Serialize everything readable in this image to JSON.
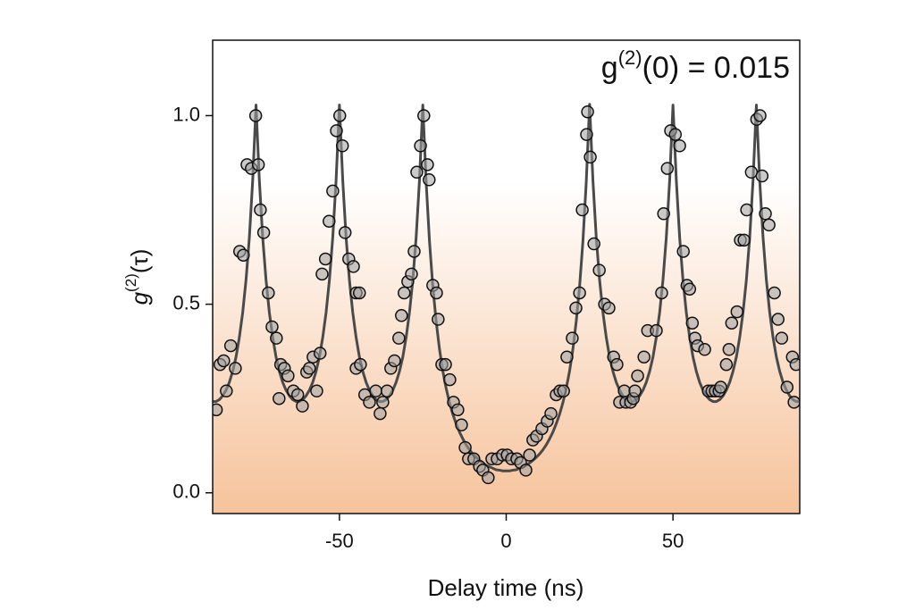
{
  "chart_data": {
    "type": "scatter",
    "annotation": {
      "base": "g",
      "sup": "(2)",
      "rest": "(0) = 0.015"
    },
    "x_label": "Delay time (ns)",
    "y_label": {
      "base": "g",
      "sup": "(2)",
      "rest": "(τ)"
    },
    "xlim": [
      -88,
      88
    ],
    "ylim": [
      -0.055,
      1.2
    ],
    "xticks": [
      -50,
      0,
      50
    ],
    "yticks": [
      {
        "value": 0,
        "label": "0.0"
      },
      {
        "value": 0.5,
        "label": "0.5"
      },
      {
        "value": 1,
        "label": "1.0"
      }
    ],
    "series": [
      {
        "type": "line",
        "color": "#4a4a4a",
        "x": [
          -88,
          -87,
          -86,
          -85,
          -84,
          -83,
          -82,
          -81,
          -80,
          -79,
          -78,
          -77,
          -76,
          -75,
          -74,
          -73,
          -72,
          -71,
          -70,
          -69,
          -68,
          -67,
          -66,
          -65,
          -64,
          -63,
          -62,
          -61,
          -60,
          -59,
          -58,
          -57,
          -56,
          -55,
          -54,
          -53,
          -52,
          -51,
          -50,
          -49,
          -48,
          -47,
          -46,
          -45,
          -44,
          -43,
          -42,
          -41,
          -40,
          -39,
          -38,
          -37,
          -36,
          -35,
          -34,
          -33,
          -32,
          -31,
          -30,
          -29,
          -28,
          -27,
          -26,
          -25,
          -24,
          -23,
          -22,
          -21,
          -20,
          -19,
          -18,
          -17,
          -16,
          -15,
          -14,
          -13,
          -12,
          -11,
          -10,
          -9,
          -8,
          -7,
          -6,
          -5,
          -4,
          -3,
          -2,
          -1,
          0,
          1,
          2,
          3,
          4,
          5,
          6,
          7,
          8,
          9,
          10,
          11,
          12,
          13,
          14,
          15,
          16,
          17,
          18,
          19,
          20,
          21,
          22,
          23,
          24,
          25,
          26,
          27,
          28,
          29,
          30,
          31,
          32,
          33,
          34,
          35,
          36,
          37,
          38,
          39,
          40,
          41,
          42,
          43,
          44,
          45,
          46,
          47,
          48,
          49,
          50,
          51,
          52,
          53,
          54,
          55,
          56,
          57,
          58,
          59,
          60,
          61,
          62,
          63,
          64,
          65,
          66,
          67,
          68,
          69,
          70,
          71,
          72,
          73,
          74,
          75,
          76,
          77,
          78,
          79,
          80,
          81,
          82,
          83,
          84,
          85,
          86,
          87,
          88
        ],
        "values": [
          0.242,
          0.242,
          0.247,
          0.257,
          0.272,
          0.293,
          0.322,
          0.36,
          0.412,
          0.478,
          0.564,
          0.677,
          0.828,
          1.028,
          0.828,
          0.677,
          0.564,
          0.478,
          0.412,
          0.36,
          0.322,
          0.293,
          0.272,
          0.257,
          0.247,
          0.242,
          0.242,
          0.247,
          0.257,
          0.272,
          0.293,
          0.322,
          0.36,
          0.412,
          0.478,
          0.564,
          0.677,
          0.828,
          1.028,
          0.828,
          0.677,
          0.564,
          0.478,
          0.412,
          0.36,
          0.322,
          0.293,
          0.272,
          0.257,
          0.247,
          0.242,
          0.242,
          0.247,
          0.257,
          0.272,
          0.293,
          0.322,
          0.36,
          0.412,
          0.478,
          0.564,
          0.677,
          0.828,
          1.028,
          0.824,
          0.667,
          0.547,
          0.455,
          0.381,
          0.323,
          0.277,
          0.239,
          0.208,
          0.183,
          0.161,
          0.143,
          0.127,
          0.114,
          0.103,
          0.094,
          0.086,
          0.079,
          0.073,
          0.069,
          0.065,
          0.061,
          0.06,
          0.058,
          0.058,
          0.058,
          0.06,
          0.061,
          0.065,
          0.069,
          0.073,
          0.079,
          0.086,
          0.094,
          0.103,
          0.114,
          0.127,
          0.143,
          0.161,
          0.183,
          0.208,
          0.239,
          0.277,
          0.323,
          0.381,
          0.455,
          0.547,
          0.667,
          0.824,
          1.03,
          0.828,
          0.677,
          0.564,
          0.478,
          0.412,
          0.36,
          0.322,
          0.293,
          0.272,
          0.257,
          0.247,
          0.242,
          0.242,
          0.247,
          0.257,
          0.272,
          0.293,
          0.322,
          0.36,
          0.412,
          0.478,
          0.564,
          0.677,
          0.828,
          1.028,
          0.828,
          0.677,
          0.564,
          0.478,
          0.412,
          0.36,
          0.322,
          0.293,
          0.272,
          0.257,
          0.247,
          0.242,
          0.242,
          0.247,
          0.257,
          0.272,
          0.293,
          0.322,
          0.36,
          0.412,
          0.478,
          0.564,
          0.677,
          0.828,
          1.028,
          0.828,
          0.677,
          0.564,
          0.478,
          0.412,
          0.36,
          0.322,
          0.293,
          0.272,
          0.257,
          0.247,
          0.242,
          0.242
        ]
      },
      {
        "type": "scatter",
        "color": "#a0a0a0",
        "x": [
          -85.8,
          -86.9,
          -84.7,
          -83.9,
          -82.6,
          -81.2,
          -79.9,
          -78.8,
          -77.7,
          -76.4,
          -75.1,
          -74.3,
          -73.7,
          -72.7,
          -71.3,
          -70.2,
          -68.9,
          -68.1,
          -67.6,
          -66.5,
          -65.4,
          -63.8,
          -62.5,
          -61.1,
          -59.8,
          -59.0,
          -57.9,
          -56.8,
          -55.8,
          -55.2,
          -54.2,
          -53.1,
          -52.0,
          -50.9,
          -49.9,
          -49.1,
          -48.3,
          -47.2,
          -45.8,
          -45.0,
          -44.0,
          -45.0,
          -43.7,
          -42.4,
          -41.0,
          -39.1,
          -37.8,
          -37.0,
          -35.7,
          -34.6,
          -33.5,
          -32.2,
          -31.4,
          -30.6,
          -29.5,
          -28.4,
          -27.6,
          -26.8,
          -25.7,
          -24.7,
          -23.6,
          -23.1,
          -22.0,
          -20.9,
          -20.4,
          -19.3,
          -18.2,
          -16.9,
          -15.8,
          -14.5,
          -13.4,
          -12.3,
          -11.3,
          -9.7,
          -8.0,
          -7.0,
          -5.4,
          -4.3,
          -2.7,
          -1.1,
          0.3,
          1.6,
          3.2,
          4.3,
          5.9,
          7.0,
          8.0,
          9.1,
          10.7,
          12.3,
          13.4,
          15.0,
          16.1,
          17.2,
          18.2,
          19.8,
          20.9,
          22.0,
          22.8,
          24.1,
          24.4,
          25.2,
          26.3,
          27.9,
          29.5,
          30.8,
          32.2,
          33.2,
          34.0,
          35.4,
          35.9,
          37.3,
          38.1,
          38.6,
          39.4,
          41.3,
          42.4,
          45.0,
          46.6,
          47.2,
          48.3,
          49.3,
          50.7,
          52.0,
          53.1,
          54.2,
          55.0,
          55.8,
          56.6,
          57.4,
          59.5,
          60.6,
          61.7,
          62.7,
          63.8,
          64.3,
          66.0,
          66.8,
          67.6,
          69.2,
          70.2,
          71.3,
          72.1,
          73.5,
          75.1,
          76.1,
          76.7,
          77.7,
          78.8,
          80.4,
          81.5,
          82.6,
          84.2,
          85.8,
          86.3,
          86.9
        ],
        "values": [
          0.34,
          0.22,
          0.35,
          0.27,
          0.39,
          0.33,
          0.64,
          0.63,
          0.87,
          0.86,
          1.0,
          0.87,
          0.75,
          0.69,
          0.53,
          0.44,
          0.41,
          0.25,
          0.34,
          0.33,
          0.31,
          0.27,
          0.26,
          0.23,
          0.32,
          0.33,
          0.36,
          0.27,
          0.37,
          0.58,
          0.62,
          0.72,
          0.8,
          0.96,
          1.0,
          0.92,
          0.69,
          0.62,
          0.6,
          0.53,
          0.53,
          0.33,
          0.34,
          0.26,
          0.24,
          0.27,
          0.21,
          0.24,
          0.27,
          0.33,
          0.35,
          0.41,
          0.47,
          0.53,
          0.56,
          0.58,
          0.64,
          0.85,
          0.92,
          1.0,
          0.87,
          0.83,
          0.55,
          0.53,
          0.46,
          0.34,
          0.34,
          0.3,
          0.24,
          0.22,
          0.18,
          0.12,
          0.09,
          0.09,
          0.07,
          0.06,
          0.04,
          0.09,
          0.09,
          0.1,
          0.1,
          0.09,
          0.09,
          0.08,
          0.06,
          0.1,
          0.14,
          0.15,
          0.17,
          0.19,
          0.21,
          0.26,
          0.27,
          0.27,
          0.36,
          0.41,
          0.49,
          0.53,
          0.75,
          0.95,
          1.01,
          0.89,
          0.66,
          0.59,
          0.5,
          0.49,
          0.36,
          0.34,
          0.24,
          0.27,
          0.24,
          0.24,
          0.25,
          0.27,
          0.31,
          0.36,
          0.43,
          0.43,
          0.53,
          0.74,
          0.86,
          0.96,
          0.95,
          0.92,
          0.64,
          0.55,
          0.54,
          0.45,
          0.41,
          0.39,
          0.38,
          0.27,
          0.27,
          0.27,
          0.27,
          0.28,
          0.34,
          0.38,
          0.45,
          0.48,
          0.67,
          0.67,
          0.75,
          0.85,
          0.99,
          1.0,
          0.84,
          0.74,
          0.71,
          0.53,
          0.46,
          0.41,
          0.28,
          0.36,
          0.24,
          0.34
        ]
      }
    ]
  }
}
